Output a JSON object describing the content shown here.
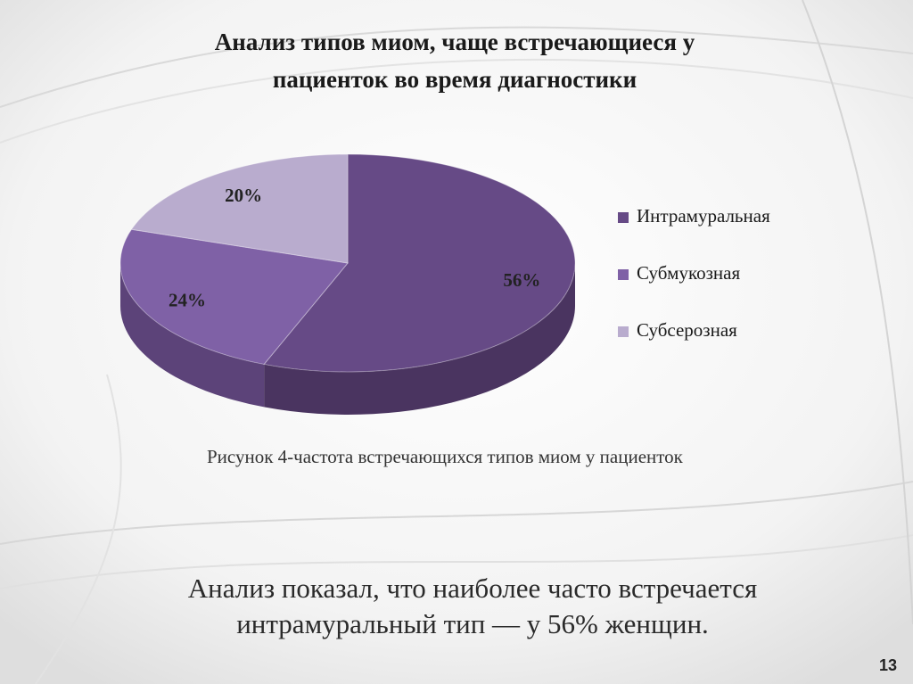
{
  "slide": {
    "title_line1": "Анализ типов миом, чаще встречающиеся у",
    "title_line2": "пациенток во время диагностики",
    "caption": "Рисунок 4-частота встречающихся типов миом у пациенток",
    "conclusion_line1": "Анализ показал, что наиболее часто встречается",
    "conclusion_line2": "интрамуральный тип — у 56%  женщин.",
    "page_number": "13"
  },
  "chart_data": {
    "type": "pie",
    "style": "3d",
    "categories": [
      "Интрамуральная",
      "Субмукозная",
      "Субсерозная"
    ],
    "values": [
      56,
      24,
      20
    ],
    "data_labels": [
      "56%",
      "24%",
      "20%"
    ],
    "colors": [
      "#664a86",
      "#7f61a6",
      "#b9acce"
    ],
    "side_colors": [
      "#4a3460",
      "#5c4379",
      "#8f82a3"
    ],
    "legend_position": "right",
    "title": ""
  }
}
